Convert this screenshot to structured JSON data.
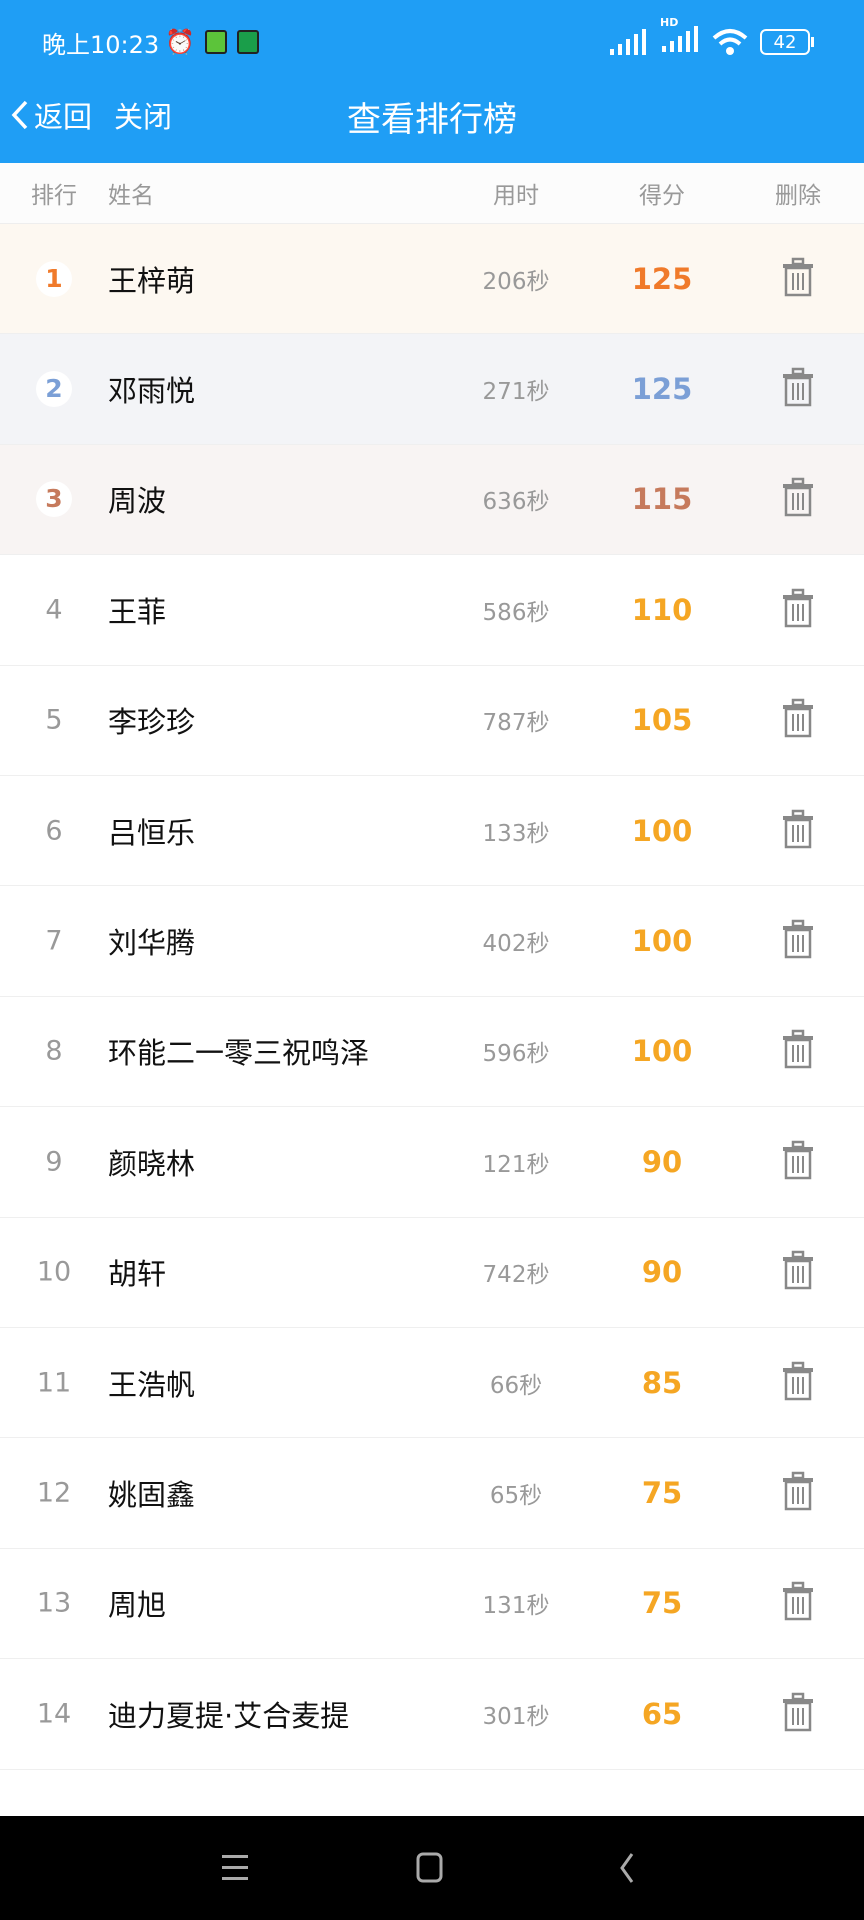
{
  "status_bar": {
    "time": "晚上10:23",
    "battery": "42",
    "network_label": "HD",
    "icons": [
      "alarm-icon",
      "app-icon",
      "phone-icon",
      "signal-icon",
      "signal-hd-icon",
      "wifi-icon",
      "battery-icon"
    ]
  },
  "header": {
    "back_label": "返回",
    "close_label": "关闭",
    "title": "查看排行榜",
    "color": "#1f9ef5"
  },
  "columns": {
    "rank": "排行",
    "name": "姓名",
    "time": "用时",
    "score": "得分",
    "delete": "删除"
  },
  "colors": {
    "gold": "#f07a2a",
    "silver": "#7b9fd6",
    "bronze": "#c67a5c",
    "score": "#f5a623"
  },
  "rows": [
    {
      "rank": "1",
      "name": "王梓萌",
      "time": "206秒",
      "score": "125"
    },
    {
      "rank": "2",
      "name": "邓雨悦",
      "time": "271秒",
      "score": "125"
    },
    {
      "rank": "3",
      "name": "周波",
      "time": "636秒",
      "score": "115"
    },
    {
      "rank": "4",
      "name": "王菲",
      "time": "586秒",
      "score": "110"
    },
    {
      "rank": "5",
      "name": "李珍珍",
      "time": "787秒",
      "score": "105"
    },
    {
      "rank": "6",
      "name": "吕恒乐",
      "time": "133秒",
      "score": "100"
    },
    {
      "rank": "7",
      "name": "刘华腾",
      "time": "402秒",
      "score": "100"
    },
    {
      "rank": "8",
      "name": "环能二一零三祝鸣泽",
      "time": "596秒",
      "score": "100"
    },
    {
      "rank": "9",
      "name": "颜晓林",
      "time": "121秒",
      "score": "90"
    },
    {
      "rank": "10",
      "name": "胡轩",
      "time": "742秒",
      "score": "90"
    },
    {
      "rank": "11",
      "name": "王浩帆",
      "time": "66秒",
      "score": "85"
    },
    {
      "rank": "12",
      "name": "姚固鑫",
      "time": "65秒",
      "score": "75"
    },
    {
      "rank": "13",
      "name": "周旭",
      "time": "131秒",
      "score": "75"
    },
    {
      "rank": "14",
      "name": "迪力夏提·艾合麦提",
      "time": "301秒",
      "score": "65"
    }
  ]
}
